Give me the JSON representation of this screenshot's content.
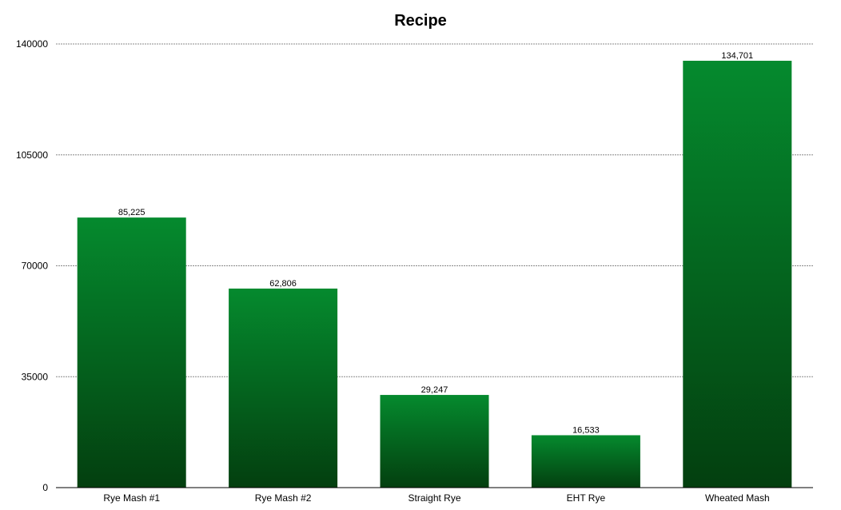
{
  "chart_data": {
    "type": "bar",
    "title": "Recipe",
    "xlabel": "",
    "ylabel": "",
    "categories": [
      "Rye Mash #1",
      "Rye Mash #2",
      "Straight Rye",
      "EHT Rye",
      "Wheated Mash"
    ],
    "values": [
      85225,
      62806,
      29247,
      16533,
      134701
    ],
    "value_labels": [
      "85,225",
      "62,806",
      "29,247",
      "16,533",
      "134,701"
    ],
    "ylim": [
      0,
      140000
    ],
    "yticks": [
      0,
      35000,
      70000,
      105000,
      140000
    ],
    "ytick_labels": [
      "0",
      "35000",
      "70000",
      "105000",
      "140000"
    ],
    "grid": true,
    "legend": "none",
    "colors": {
      "bar_top": "#058a2e",
      "bar_bottom": "#033f0f",
      "grid": "#888888",
      "axis": "#000000"
    }
  }
}
